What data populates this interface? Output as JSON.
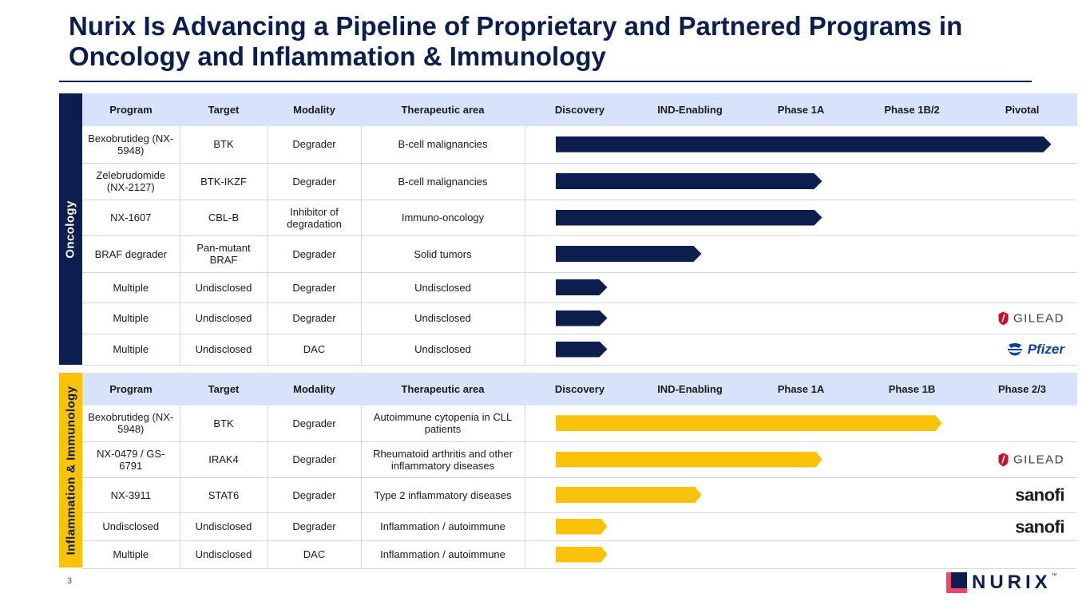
{
  "title": "Nurix Is Advancing a Pipeline of Proprietary and Partnered Programs in Oncology and Inflammation & Immunology",
  "oncology": {
    "label": "Oncology",
    "headers": [
      "Program",
      "Target",
      "Modality",
      "Therapeutic area",
      "Discovery",
      "IND-Enabling",
      "Phase 1A",
      "Phase 1B/2",
      "Pivotal"
    ],
    "rows": [
      {
        "program": "Bexobrutideg (NX-5948)",
        "target": "BTK",
        "modality": "Degrader",
        "area": "B-cell malignancies",
        "stage_progress": 0.95,
        "partner": ""
      },
      {
        "program": "Zelebrudomide (NX-2127)",
        "target": "BTK-IKZF",
        "modality": "Degrader",
        "area": "B-cell malignancies",
        "stage_progress": 0.51,
        "partner": ""
      },
      {
        "program": "NX-1607",
        "target": "CBL-B",
        "modality": "Inhibitor of degradation",
        "area": "Immuno-oncology",
        "stage_progress": 0.51,
        "partner": ""
      },
      {
        "program": "BRAF degrader",
        "target": "Pan-mutant BRAF",
        "modality": "Degrader",
        "area": "Solid tumors",
        "stage_progress": 0.28,
        "partner": ""
      },
      {
        "program": "Multiple",
        "target": "Undisclosed",
        "modality": "Degrader",
        "area": "Undisclosed",
        "stage_progress": 0.1,
        "partner": ""
      },
      {
        "program": "Multiple",
        "target": "Undisclosed",
        "modality": "Degrader",
        "area": "Undisclosed",
        "stage_progress": 0.1,
        "partner": "GILEAD"
      },
      {
        "program": "Multiple",
        "target": "Undisclosed",
        "modality": "DAC",
        "area": "Undisclosed",
        "stage_progress": 0.1,
        "partner": "Pfizer"
      }
    ]
  },
  "inflammation": {
    "label": "Inflammation & Immunology",
    "headers": [
      "Program",
      "Target",
      "Modality",
      "Therapeutic area",
      "Discovery",
      "IND-Enabling",
      "Phase 1A",
      "Phase 1B",
      "Phase 2/3"
    ],
    "rows": [
      {
        "program": "Bexobrutideg (NX-5948)",
        "target": "BTK",
        "modality": "Degrader",
        "area": "Autoimmune cytopenia in CLL patients",
        "stage_progress": 0.74,
        "partner": ""
      },
      {
        "program": "NX-0479 / GS-6791",
        "target": "IRAK4",
        "modality": "Degrader",
        "area": "Rheumatoid arthritis and other inflammatory diseases",
        "stage_progress": 0.51,
        "partner": "GILEAD"
      },
      {
        "program": "NX-3911",
        "target": "STAT6",
        "modality": "Degrader",
        "area": "Type 2 inflammatory diseases",
        "stage_progress": 0.28,
        "partner": "sanofi"
      },
      {
        "program": "Undisclosed",
        "target": "Undisclosed",
        "modality": "Degrader",
        "area": "Inflammation / autoimmune",
        "stage_progress": 0.1,
        "partner": "sanofi"
      },
      {
        "program": "Multiple",
        "target": "Undisclosed",
        "modality": "DAC",
        "area": "Inflammation / autoimmune",
        "stage_progress": 0.1,
        "partner": ""
      }
    ]
  },
  "footer": {
    "page_number": "3",
    "logo_text": "NURIX",
    "logo_tm": "™"
  },
  "colors": {
    "navy": "#0c1e4e",
    "gold": "#fbc20b",
    "header_bg": "#d6e3fb",
    "logo_pink": "#e94a6c"
  },
  "icons": {
    "gilead": "gilead-logo-icon",
    "pfizer": "pfizer-logo-icon",
    "sanofi": "sanofi-logo-icon"
  }
}
